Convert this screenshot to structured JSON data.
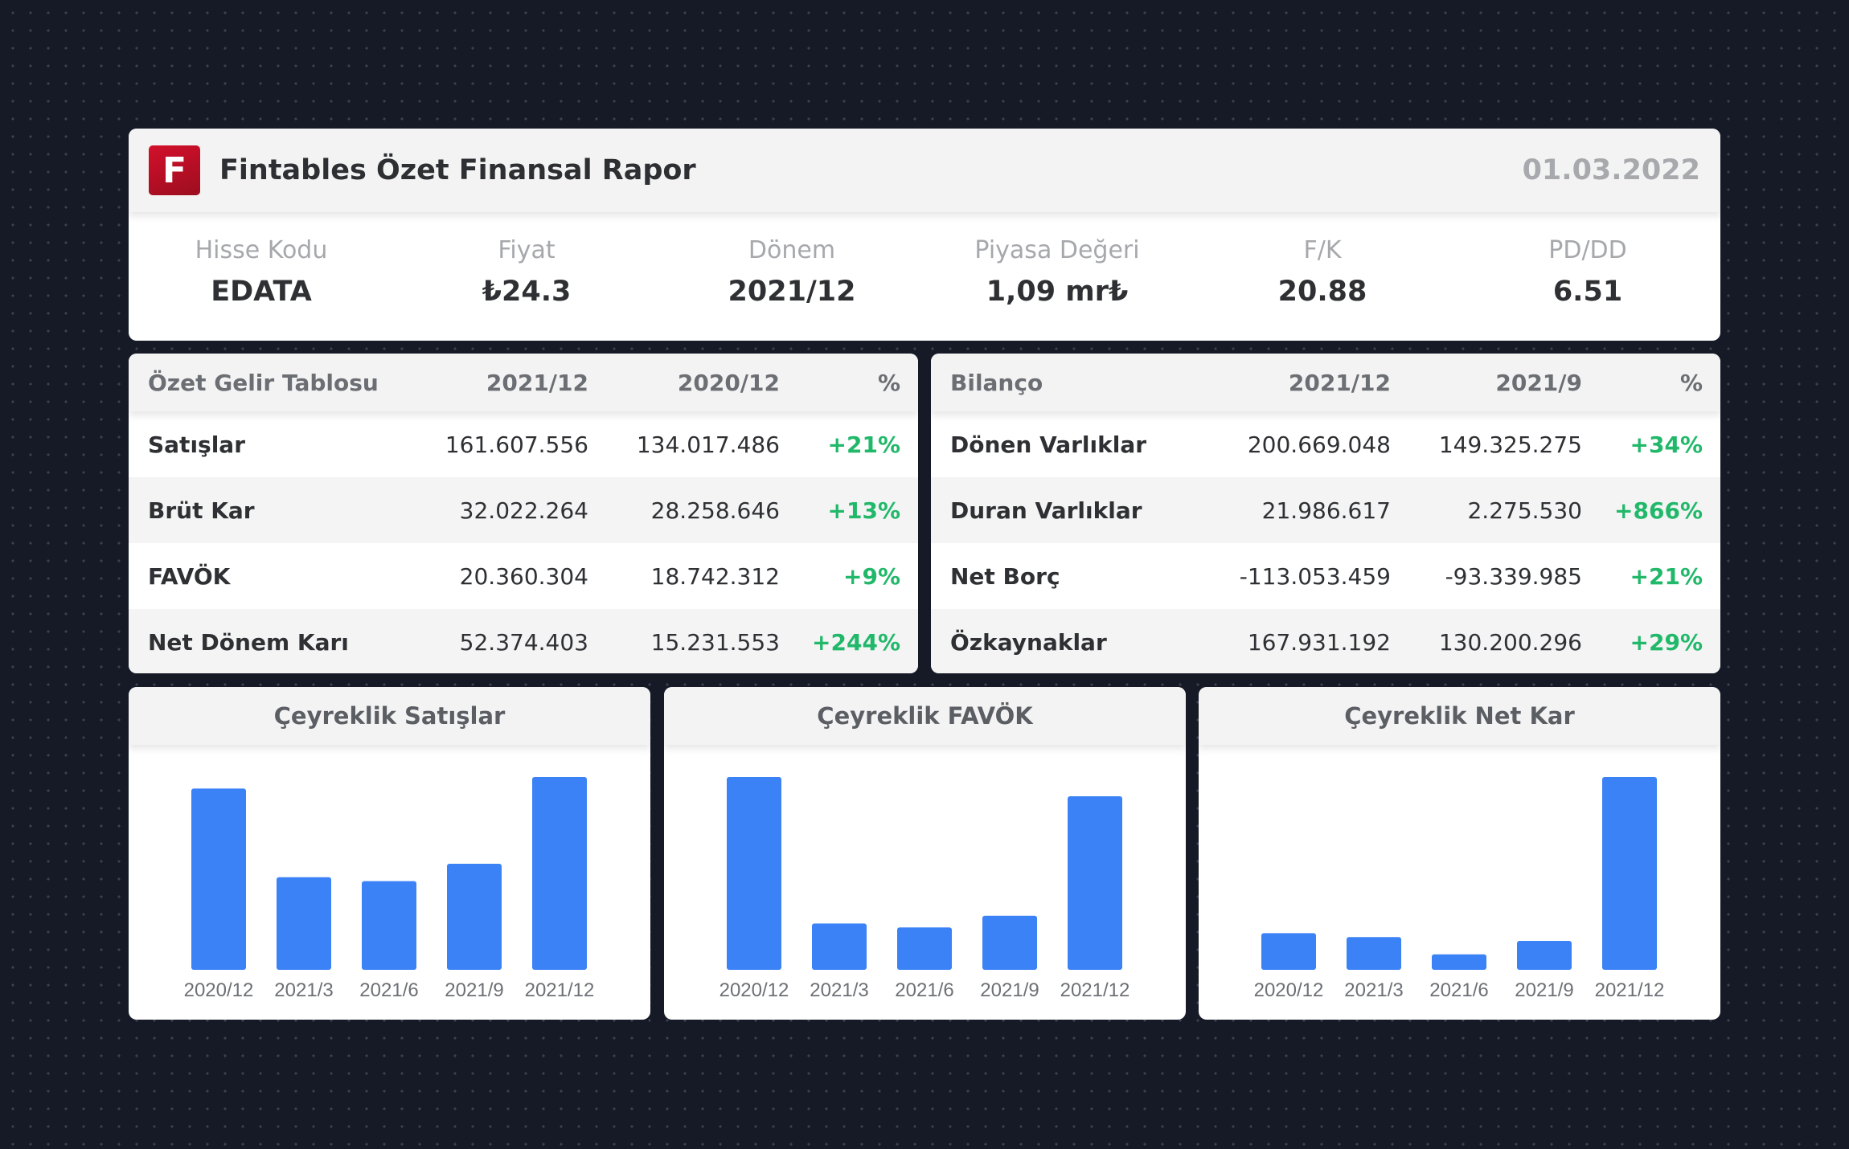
{
  "header": {
    "logo_letter": "F",
    "title": "Fintables Özet Finansal Rapor",
    "date": "01.03.2022"
  },
  "stats": [
    {
      "label": "Hisse Kodu",
      "value": "EDATA"
    },
    {
      "label": "Fiyat",
      "value": "₺24.3"
    },
    {
      "label": "Dönem",
      "value": "2021/12"
    },
    {
      "label": "Piyasa Değeri",
      "value": "1,09 mr₺"
    },
    {
      "label": "F/K",
      "value": "20.88"
    },
    {
      "label": "PD/DD",
      "value": "6.51"
    }
  ],
  "income": {
    "headers": [
      "Özet Gelir Tablosu",
      "2021/12",
      "2020/12",
      "%"
    ],
    "rows": [
      [
        "Satışlar",
        "161.607.556",
        "134.017.486",
        "+21%"
      ],
      [
        "Brüt Kar",
        "32.022.264",
        "28.258.646",
        "+13%"
      ],
      [
        "FAVÖK",
        "20.360.304",
        "18.742.312",
        "+9%"
      ],
      [
        "Net Dönem Karı",
        "52.374.403",
        "15.231.553",
        "+244%"
      ]
    ]
  },
  "balance": {
    "headers": [
      "Bilanço",
      "2021/12",
      "2021/9",
      "%"
    ],
    "rows": [
      [
        "Dönen Varlıklar",
        "200.669.048",
        "149.325.275",
        "+34%"
      ],
      [
        "Duran Varlıklar",
        "21.986.617",
        "2.275.530",
        "+866%"
      ],
      [
        "Net Borç",
        "-113.053.459",
        "-93.339.985",
        "+21%"
      ],
      [
        "Özkaynaklar",
        "167.931.192",
        "130.200.296",
        "+29%"
      ]
    ]
  },
  "colors": {
    "bar": "#3b82f6",
    "positive": "#21b86a",
    "logo": "#c8102e"
  },
  "chart_data": [
    {
      "type": "bar",
      "title": "Çeyreklik Satışlar",
      "categories": [
        "2020/12",
        "2021/3",
        "2021/6",
        "2021/9",
        "2021/12"
      ],
      "values": [
        0.94,
        0.48,
        0.46,
        0.55,
        1.0
      ],
      "ylim": [
        0,
        1
      ]
    },
    {
      "type": "bar",
      "title": "Çeyreklik FAVÖK",
      "categories": [
        "2020/12",
        "2021/3",
        "2021/6",
        "2021/9",
        "2021/12"
      ],
      "values": [
        1.0,
        0.24,
        0.22,
        0.28,
        0.9
      ],
      "ylim": [
        0,
        1
      ]
    },
    {
      "type": "bar",
      "title": "Çeyreklik Net Kar",
      "categories": [
        "2020/12",
        "2021/3",
        "2021/6",
        "2021/9",
        "2021/12"
      ],
      "values": [
        0.19,
        0.17,
        0.08,
        0.15,
        1.0
      ],
      "ylim": [
        0,
        1
      ]
    }
  ]
}
